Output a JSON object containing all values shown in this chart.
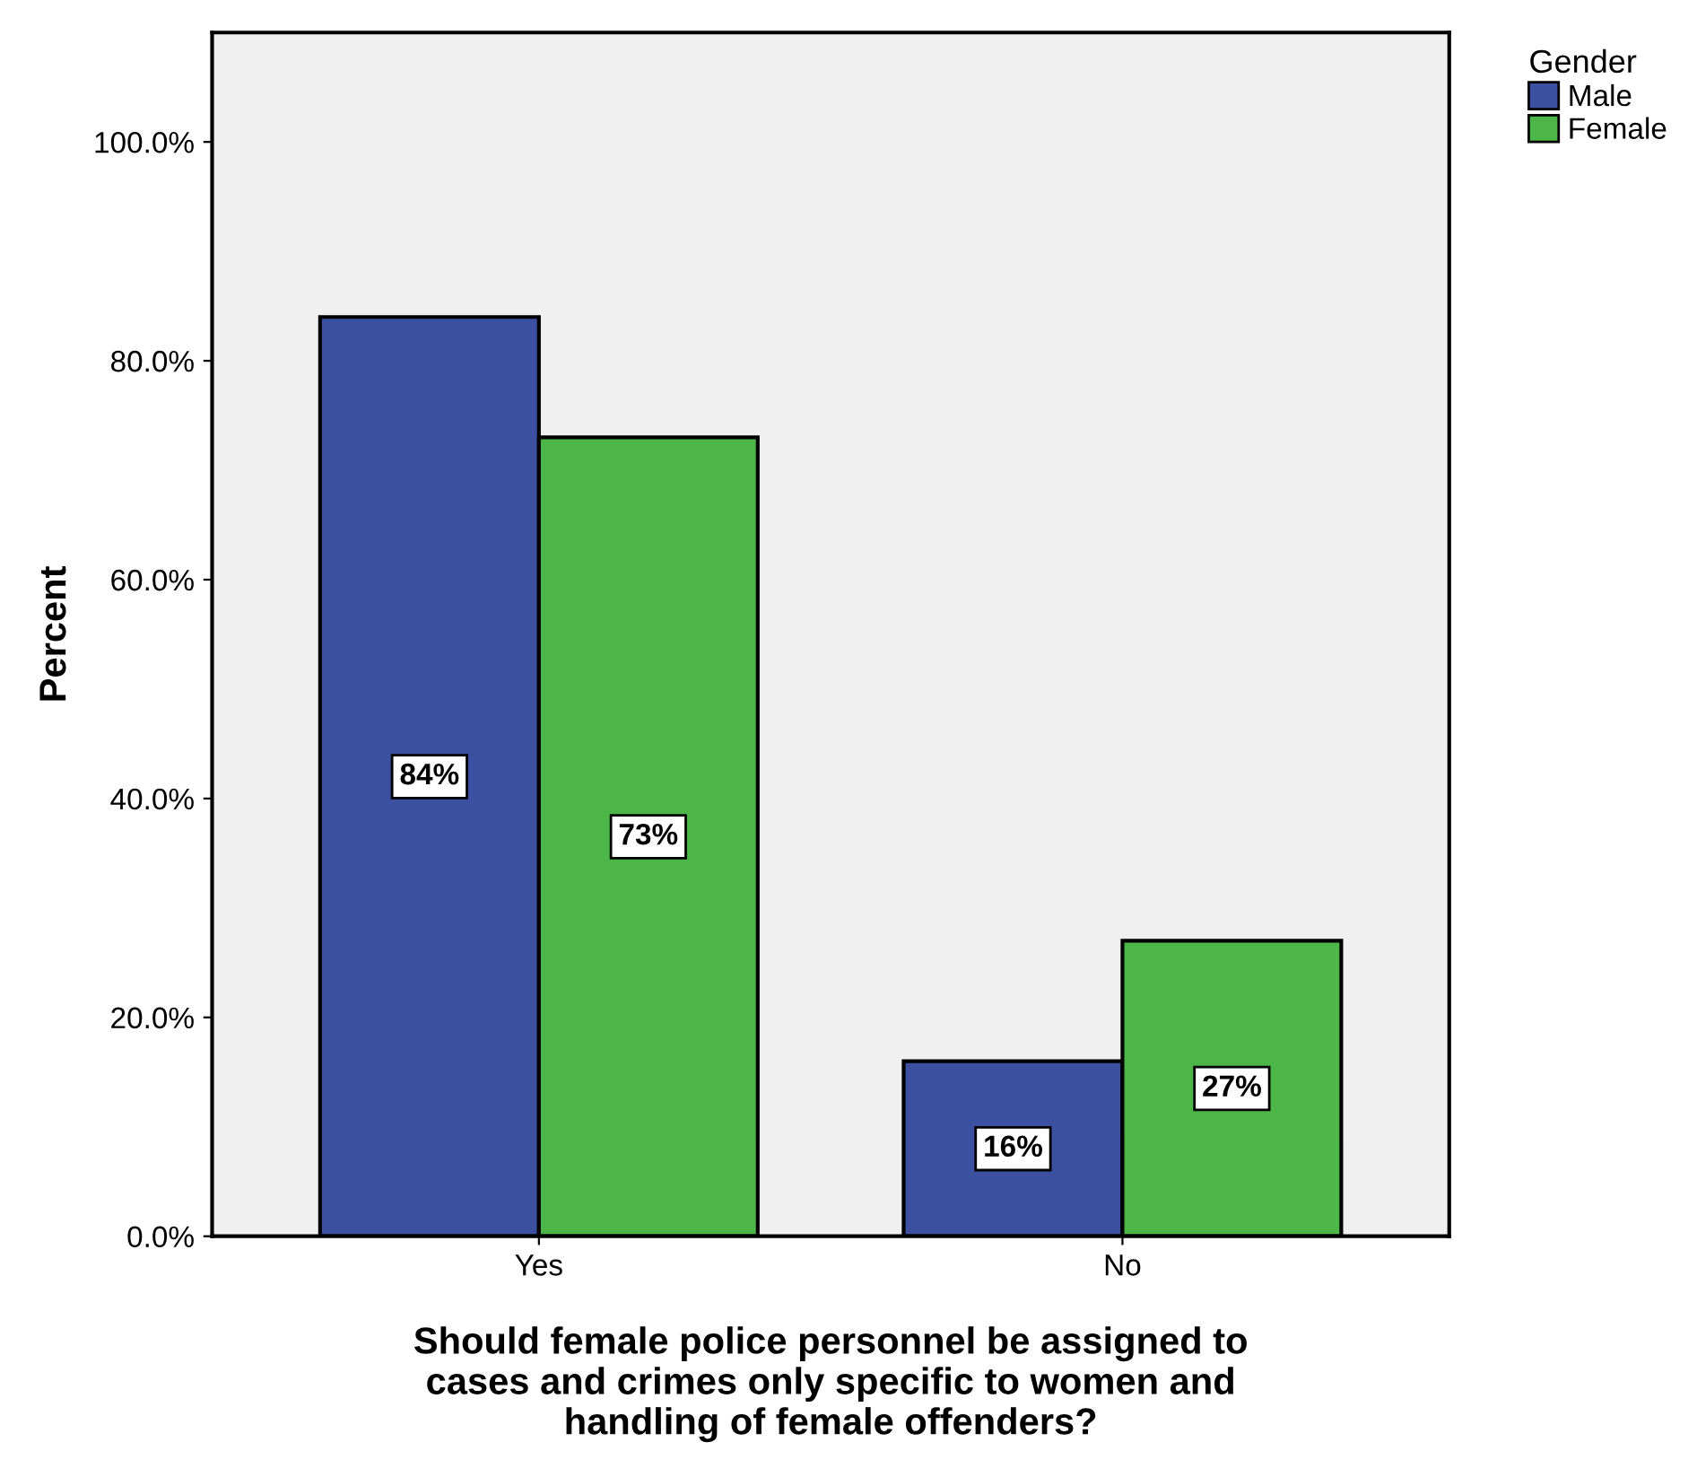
{
  "chart_data": {
    "type": "bar",
    "xlabel": "Should female police personnel be assigned to\ncases and crimes only specific to women and\nhandling of female offenders?",
    "ylabel": "Percent",
    "legend_title": "Gender",
    "categories": [
      "Yes",
      "No"
    ],
    "series": [
      {
        "name": "Male",
        "color": "#3b50a0",
        "values": [
          84,
          16
        ],
        "value_labels": [
          "84%",
          "16%"
        ]
      },
      {
        "name": "Female",
        "color": "#4cb748",
        "values": [
          73,
          27
        ],
        "value_labels": [
          "73%",
          "27%"
        ]
      }
    ],
    "ylim": [
      0,
      110
    ],
    "yticks": [
      {
        "value": 0,
        "label": "0.0%"
      },
      {
        "value": 20,
        "label": "20.0%"
      },
      {
        "value": 40,
        "label": "40.0%"
      },
      {
        "value": 60,
        "label": "60.0%"
      },
      {
        "value": 80,
        "label": "80.0%"
      },
      {
        "value": 100,
        "label": "100.0%"
      }
    ],
    "grid": false,
    "legend": "top right"
  }
}
